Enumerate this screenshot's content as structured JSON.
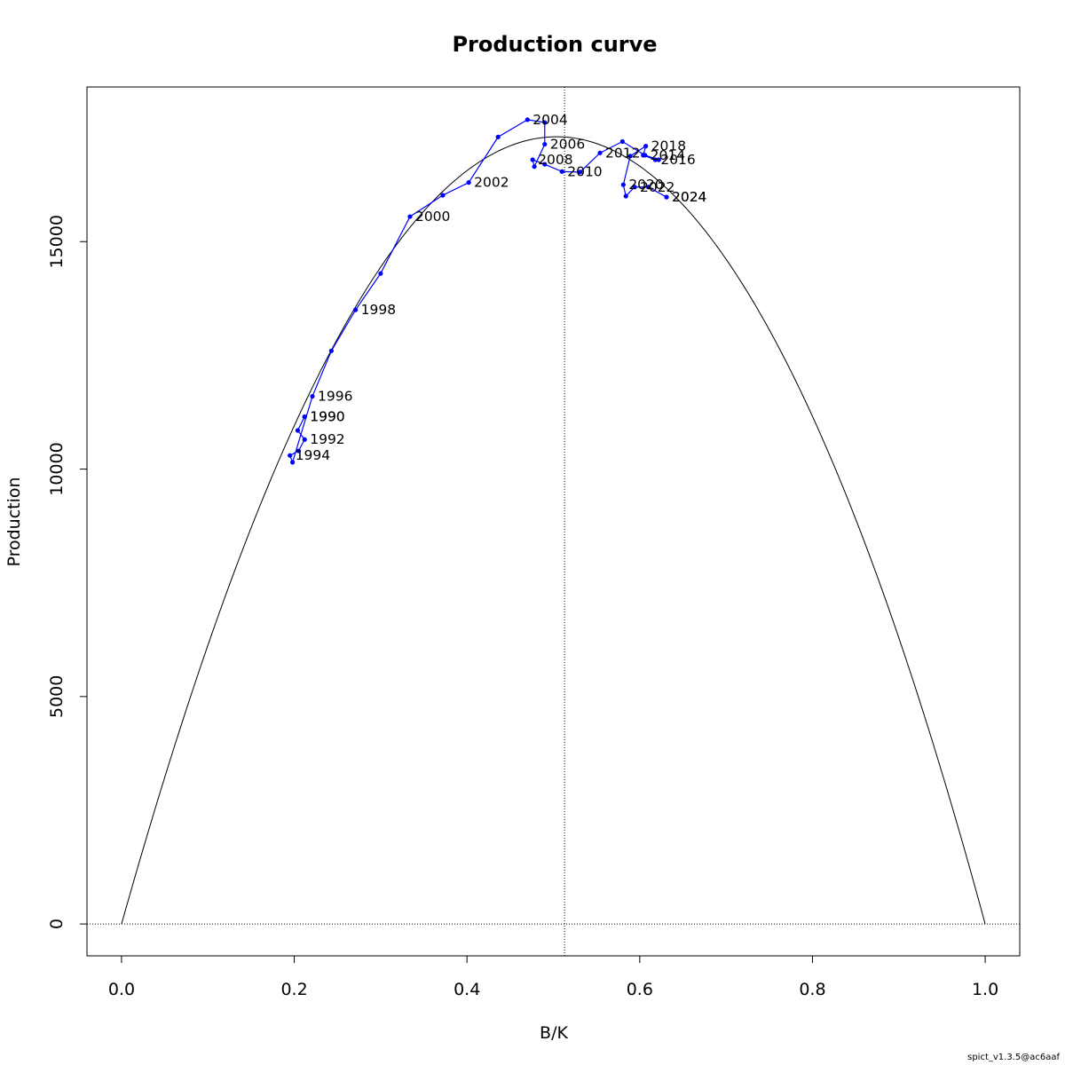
{
  "footer": "spict_v1.3.5@ac6aaf",
  "chart_data": {
    "type": "line",
    "title": "Production curve",
    "xlabel": "B/K",
    "ylabel": "Production",
    "xlim": [
      -0.04,
      1.04
    ],
    "ylim": [
      -700,
      18400
    ],
    "x_ticks": [
      {
        "value": 0.0,
        "label": "0.0"
      },
      {
        "value": 0.2,
        "label": "0.2"
      },
      {
        "value": 0.4,
        "label": "0.4"
      },
      {
        "value": 0.6,
        "label": "0.6"
      },
      {
        "value": 0.8,
        "label": "0.8"
      },
      {
        "value": 1.0,
        "label": "1.0"
      }
    ],
    "y_ticks": [
      {
        "value": 0,
        "label": "0"
      },
      {
        "value": 5000,
        "label": "5000"
      },
      {
        "value": 10000,
        "label": "10000"
      },
      {
        "value": 15000,
        "label": "15000"
      }
    ],
    "reference_lines": {
      "horizontal_y": 0,
      "vertical_x": 0.513
    },
    "production_curve": {
      "peak_x": 0.513,
      "peak_y": 17300,
      "description_color": "#000000"
    },
    "series_color": "#0000ff",
    "series": [
      {
        "name": "",
        "points": [
          {
            "x": 0.212,
            "y": 11150,
            "label": "1990"
          },
          {
            "x": 0.212,
            "y": 11150,
            "label": "1990"
          },
          {
            "x": 0.204,
            "y": 10850,
            "label": ""
          },
          {
            "x": 0.212,
            "y": 10650,
            "label": "1992"
          },
          {
            "x": 0.205,
            "y": 10400,
            "label": ""
          },
          {
            "x": 0.195,
            "y": 10300,
            "label": "1994"
          },
          {
            "x": 0.198,
            "y": 10150,
            "label": ""
          },
          {
            "x": 0.221,
            "y": 11600,
            "label": "1996"
          },
          {
            "x": 0.243,
            "y": 12600,
            "label": ""
          },
          {
            "x": 0.271,
            "y": 13500,
            "label": "1998"
          },
          {
            "x": 0.3,
            "y": 14300,
            "label": ""
          },
          {
            "x": 0.334,
            "y": 15550,
            "label": "2000"
          },
          {
            "x": 0.372,
            "y": 16020,
            "label": ""
          },
          {
            "x": 0.402,
            "y": 16300,
            "label": "2002"
          },
          {
            "x": 0.436,
            "y": 17300,
            "label": ""
          },
          {
            "x": 0.47,
            "y": 17680,
            "label": "2004"
          },
          {
            "x": 0.49,
            "y": 17620,
            "label": ""
          },
          {
            "x": 0.49,
            "y": 17140,
            "label": "2006"
          },
          {
            "x": 0.478,
            "y": 16650,
            "label": ""
          },
          {
            "x": 0.476,
            "y": 16800,
            "label": "2008"
          },
          {
            "x": 0.49,
            "y": 16700,
            "label": ""
          },
          {
            "x": 0.51,
            "y": 16540,
            "label": "2010"
          },
          {
            "x": 0.531,
            "y": 16530,
            "label": ""
          },
          {
            "x": 0.554,
            "y": 16950,
            "label": "2012"
          },
          {
            "x": 0.58,
            "y": 17200,
            "label": ""
          },
          {
            "x": 0.606,
            "y": 16900,
            "label": "2014"
          },
          {
            "x": 0.622,
            "y": 16800,
            "label": ""
          },
          {
            "x": 0.618,
            "y": 16800,
            "label": "2016"
          },
          {
            "x": 0.604,
            "y": 16900,
            "label": ""
          },
          {
            "x": 0.607,
            "y": 17100,
            "label": "2018"
          },
          {
            "x": 0.589,
            "y": 16880,
            "label": ""
          },
          {
            "x": 0.581,
            "y": 16250,
            "label": "2020"
          },
          {
            "x": 0.584,
            "y": 16000,
            "label": ""
          },
          {
            "x": 0.594,
            "y": 16200,
            "label": "2022"
          },
          {
            "x": 0.61,
            "y": 16200,
            "label": ""
          },
          {
            "x": 0.631,
            "y": 15980,
            "label": "2024"
          },
          {
            "x": 0.631,
            "y": 15980,
            "label": "2024"
          }
        ]
      }
    ]
  }
}
